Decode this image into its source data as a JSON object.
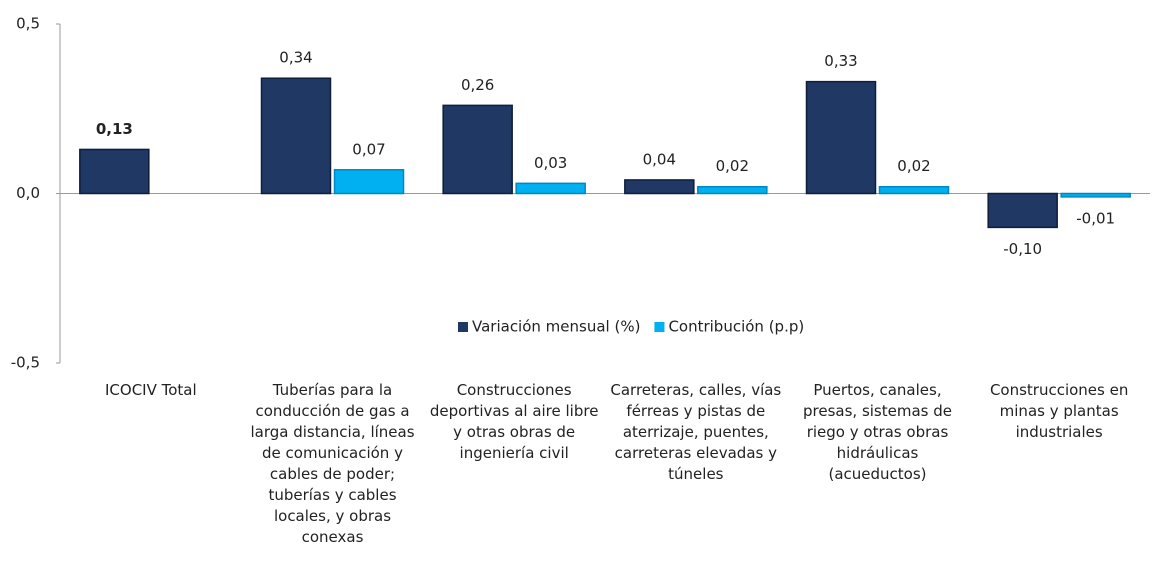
{
  "chart_data": {
    "type": "bar",
    "categories": [
      "ICOCIV Total",
      "Tuberías para la conducción de gas a larga distancia, líneas de comunicación y cables de poder; tuberías y cables locales, y obras conexas",
      "Construcciones deportivas al aire libre y otras obras de ingeniería civil",
      "Carreteras, calles, vías férreas y pistas de aterrizaje, puentes, carreteras elevadas y túneles",
      "Puertos, canales, presas, sistemas de riego y otras obras hidráulicas (acueductos)",
      "Construcciones  en minas y plantas industriales"
    ],
    "series": [
      {
        "name": "Variación mensual (%)",
        "color": "#1f3864",
        "values": [
          0.13,
          0.34,
          0.26,
          0.04,
          0.33,
          -0.1
        ],
        "value_labels": [
          "0,13",
          "0,34",
          "0,26",
          "0,04",
          "0,33",
          "-0,10"
        ]
      },
      {
        "name": "Contribución (p.p)",
        "color": "#00b0f0",
        "values": [
          null,
          0.07,
          0.03,
          0.02,
          0.02,
          -0.01
        ],
        "value_labels": [
          null,
          "0,07",
          "0,03",
          "0,02",
          "0,02",
          "-0,01"
        ]
      }
    ],
    "ylim": [
      -0.5,
      0.5
    ],
    "yticks": [
      {
        "value": -0.5,
        "label": "-0,5"
      },
      {
        "value": 0,
        "label": "0,0"
      },
      {
        "value": 0.5,
        "label": "0,5"
      }
    ],
    "legend": "center"
  }
}
